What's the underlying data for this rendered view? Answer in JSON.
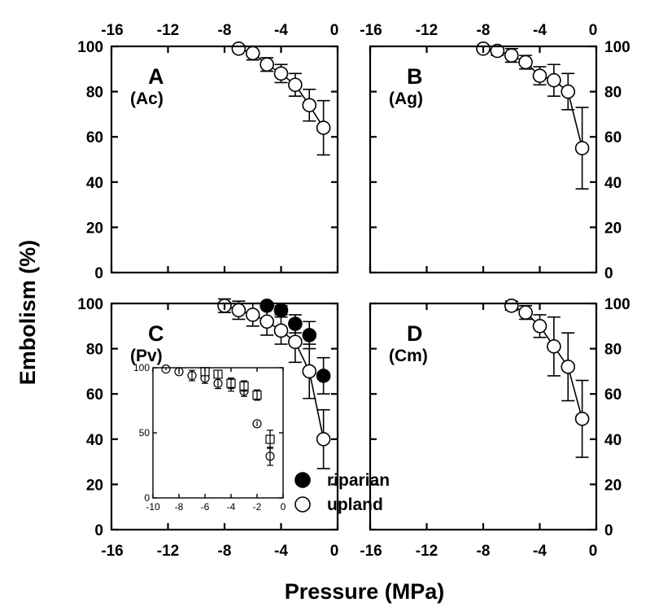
{
  "figure": {
    "xlabel": "Pressure (MPa)",
    "ylabel": "Embolism (%)"
  },
  "legend": [
    {
      "label": "riparian",
      "marker": "filled-circle"
    },
    {
      "label": "upland",
      "marker": "open-circle"
    }
  ],
  "colors": {
    "ink": "#000000",
    "background": "#ffffff"
  },
  "chart_data": [
    {
      "type": "line",
      "panel": "A",
      "letter": "A",
      "species": "(Ac)",
      "xlim": [
        -16,
        0
      ],
      "ylim": [
        0,
        100
      ],
      "xticks": [
        "-16",
        "-12",
        "-8",
        "-4",
        "0"
      ],
      "yticks": [
        "0",
        "20",
        "40",
        "60",
        "80",
        "100"
      ],
      "x_tick_labels_at": "top",
      "y_tick_labels_at": "left",
      "grid": false,
      "series": [
        {
          "name": "upland",
          "marker": "open-circle",
          "line": true,
          "x": [
            -7,
            -6,
            -5,
            -4,
            -3,
            -2,
            -1
          ],
          "y": [
            99,
            97,
            92,
            88,
            83,
            74,
            64
          ],
          "err": [
            0,
            3,
            3,
            4,
            5,
            7,
            12
          ]
        }
      ]
    },
    {
      "type": "line",
      "panel": "B",
      "letter": "B",
      "species": "(Ag)",
      "xlim": [
        -16,
        0
      ],
      "ylim": [
        0,
        100
      ],
      "xticks": [
        "-16",
        "-12",
        "-8",
        "-4",
        "0"
      ],
      "yticks": [
        "0",
        "20",
        "40",
        "60",
        "80",
        "100"
      ],
      "x_tick_labels_at": "top",
      "y_tick_labels_at": "right",
      "grid": false,
      "series": [
        {
          "name": "upland",
          "marker": "open-circle",
          "line": true,
          "x": [
            -8,
            -7,
            -6,
            -5,
            -4,
            -3,
            -2,
            -1
          ],
          "y": [
            99,
            98,
            96,
            93,
            87,
            85,
            80,
            55
          ],
          "err": [
            1,
            2,
            3,
            3,
            4,
            7,
            8,
            18
          ]
        }
      ]
    },
    {
      "type": "line",
      "panel": "C",
      "letter": "C",
      "species": "(Pv)",
      "xlim": [
        -16,
        0
      ],
      "ylim": [
        0,
        100
      ],
      "xticks": [
        "-16",
        "-12",
        "-8",
        "-4",
        "0"
      ],
      "yticks": [
        "0",
        "20",
        "40",
        "60",
        "80",
        "100"
      ],
      "x_tick_labels_at": "bottom",
      "y_tick_labels_at": "left",
      "grid": false,
      "series": [
        {
          "name": "riparian",
          "marker": "filled-circle",
          "line": false,
          "x": [
            -5,
            -4,
            -3,
            -2,
            -1
          ],
          "y": [
            99,
            97,
            91,
            86,
            68
          ],
          "err": [
            0,
            2,
            4,
            6,
            8
          ]
        },
        {
          "name": "upland",
          "marker": "open-circle",
          "line": true,
          "x": [
            -8,
            -7,
            -6,
            -5,
            -4,
            -3,
            -2,
            -1
          ],
          "y": [
            99,
            97,
            95,
            92,
            88,
            83,
            70,
            40
          ],
          "err": [
            3,
            4,
            5,
            6,
            6,
            9,
            12,
            13
          ]
        }
      ]
    },
    {
      "type": "scatter",
      "panel": "C-inset",
      "xlim": [
        -10,
        0
      ],
      "ylim": [
        0,
        100
      ],
      "xticks": [
        "-10",
        "-8",
        "-6",
        "-4",
        "-2",
        "0"
      ],
      "yticks": [
        "0",
        "50",
        "100"
      ],
      "grid": false,
      "series": [
        {
          "marker": "open-circle",
          "x": [
            -9,
            -8,
            -7,
            -6,
            -5,
            -4,
            -3,
            -2,
            -1
          ],
          "y": [
            99,
            97,
            94,
            92,
            88,
            87,
            82,
            57,
            32
          ],
          "err": [
            1,
            2,
            4,
            4,
            4,
            5,
            4,
            2,
            7
          ]
        },
        {
          "marker": "open-square",
          "x": [
            -6,
            -5,
            -4,
            -3,
            -2,
            -1
          ],
          "y": [
            97,
            95,
            88,
            86,
            79,
            45
          ],
          "err": [
            3,
            3,
            4,
            4,
            4,
            7
          ]
        }
      ]
    },
    {
      "type": "line",
      "panel": "D",
      "letter": "D",
      "species": "(Cm)",
      "xlim": [
        -16,
        0
      ],
      "ylim": [
        0,
        100
      ],
      "xticks": [
        "-16",
        "-12",
        "-8",
        "-4",
        "0"
      ],
      "yticks": [
        "0",
        "20",
        "40",
        "60",
        "80",
        "100"
      ],
      "x_tick_labels_at": "bottom",
      "y_tick_labels_at": "right",
      "grid": false,
      "series": [
        {
          "name": "upland",
          "marker": "open-circle",
          "line": true,
          "x": [
            -6,
            -5,
            -4,
            -3,
            -2,
            -1
          ],
          "y": [
            99,
            96,
            90,
            81,
            72,
            49
          ],
          "err": [
            2,
            3,
            5,
            13,
            15,
            17
          ]
        }
      ]
    }
  ]
}
